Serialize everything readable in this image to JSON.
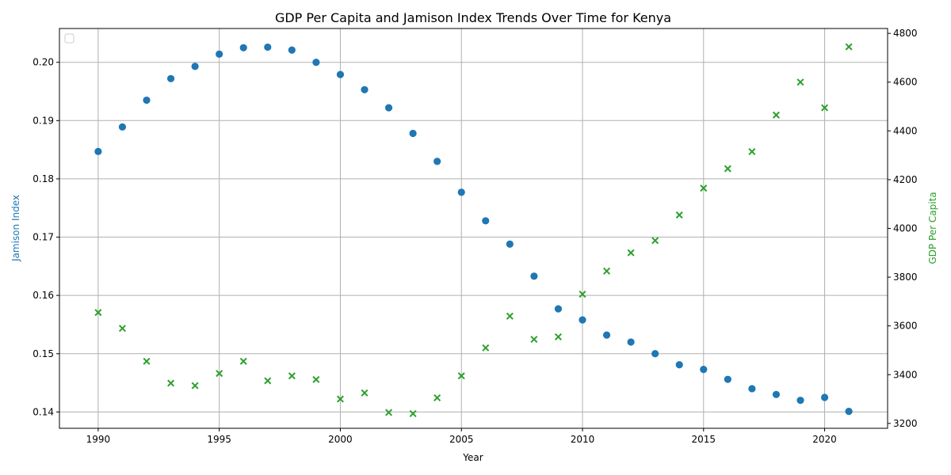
{
  "chart_data": {
    "type": "scatter",
    "title": "GDP Per Capita and Jamison Index Trends Over Time for Kenya",
    "xlabel": "Year",
    "ylabel_left": "Jamison Index",
    "ylabel_right": "GDP Per Capita",
    "xlim": [
      1988.4,
      2022.6
    ],
    "ylim_left": [
      0.1372,
      0.2058
    ],
    "ylim_right": [
      3180,
      4820
    ],
    "xticks": [
      1990,
      1995,
      2000,
      2005,
      2010,
      2015,
      2020
    ],
    "yticks_left": [
      0.14,
      0.15,
      0.16,
      0.17,
      0.18,
      0.19,
      0.2
    ],
    "ytick_labels_left": [
      "0.14",
      "0.15",
      "0.16",
      "0.17",
      "0.18",
      "0.19",
      "0.20"
    ],
    "yticks_right": [
      3200,
      3400,
      3600,
      3800,
      4000,
      4200,
      4400,
      4600,
      4800
    ],
    "grid": true,
    "legend": "top-left (empty)",
    "colors": {
      "left": "#1f77b4",
      "right": "#2ca02c"
    },
    "x": [
      1990,
      1991,
      1992,
      1993,
      1994,
      1995,
      1996,
      1997,
      1998,
      1999,
      2000,
      2001,
      2002,
      2003,
      2004,
      2005,
      2006,
      2007,
      2008,
      2009,
      2010,
      2011,
      2012,
      2013,
      2014,
      2015,
      2016,
      2017,
      2018,
      2019,
      2020,
      2021
    ],
    "series": [
      {
        "name": "Jamison Index",
        "axis": "left",
        "marker": "circle",
        "values": [
          0.1847,
          0.1889,
          0.1935,
          0.1972,
          0.1993,
          0.2014,
          0.2025,
          0.2026,
          0.2021,
          0.2,
          0.1979,
          0.1953,
          0.1922,
          0.1878,
          0.183,
          0.1777,
          0.1728,
          0.1688,
          0.1633,
          0.1577,
          0.1558,
          0.1532,
          0.152,
          0.15,
          0.1481,
          0.1473,
          0.1456,
          0.144,
          0.143,
          0.142,
          0.1425,
          0.1401
        ]
      },
      {
        "name": "GDP Per Capita",
        "axis": "right",
        "marker": "x",
        "values": [
          3655,
          3590,
          3455,
          3365,
          3355,
          3405,
          3455,
          3375,
          3395,
          3380,
          3300,
          3325,
          3245,
          3240,
          3305,
          3395,
          3510,
          3640,
          3545,
          3555,
          3730,
          3825,
          3900,
          3950,
          4055,
          4165,
          4245,
          4315,
          4465,
          4600,
          4495,
          4745
        ]
      }
    ]
  }
}
